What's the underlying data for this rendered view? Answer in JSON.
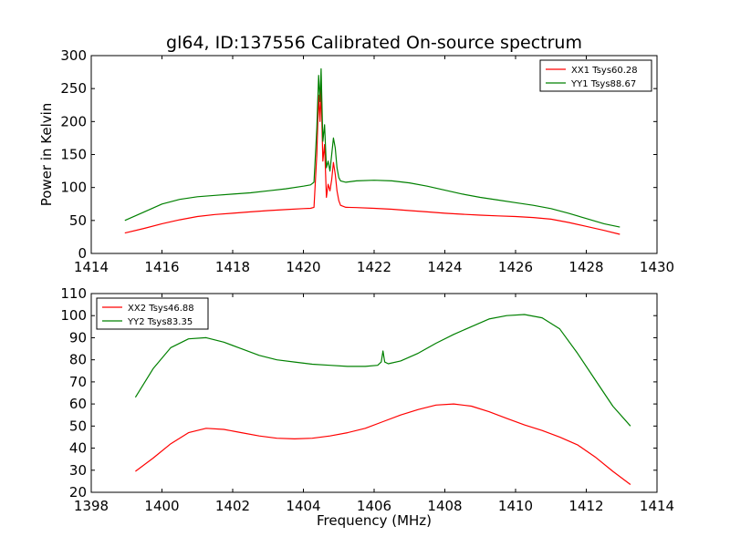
{
  "chart_data": [
    {
      "type": "line",
      "title": "gl64, ID:137556 Calibrated On-source spectrum",
      "xlabel": "",
      "ylabel": "Power in Kelvin",
      "xlim": [
        1414,
        1430
      ],
      "ylim": [
        0,
        300
      ],
      "xticks": [
        "1414",
        "1416",
        "1418",
        "1420",
        "1422",
        "1424",
        "1426",
        "1428",
        "1430"
      ],
      "yticks": [
        "0",
        "50",
        "100",
        "150",
        "200",
        "250",
        "300"
      ],
      "grid": false,
      "legend_position": "top-right",
      "series": [
        {
          "name": "XX1 Tsys60.28",
          "color": "#ff0000",
          "x": [
            1414.95,
            1415.5,
            1416,
            1416.5,
            1417,
            1417.5,
            1418,
            1418.5,
            1419,
            1419.5,
            1420,
            1420.2,
            1420.3,
            1420.38,
            1420.43,
            1420.47,
            1420.5,
            1420.55,
            1420.6,
            1420.65,
            1420.7,
            1420.75,
            1420.8,
            1420.85,
            1420.9,
            1420.95,
            1421.0,
            1421.05,
            1421.2,
            1421.5,
            1422,
            1422.5,
            1423,
            1423.5,
            1424,
            1424.5,
            1425,
            1425.5,
            1426,
            1426.5,
            1427,
            1427.5,
            1428,
            1428.5,
            1428.95
          ],
          "y": [
            31,
            38,
            45,
            51,
            56,
            59,
            61,
            63,
            65,
            66.5,
            68,
            68.5,
            70,
            150,
            240,
            200,
            250,
            140,
            165,
            85,
            105,
            95,
            112,
            138,
            120,
            95,
            80,
            73,
            70,
            69.5,
            68.5,
            67,
            65,
            63,
            61,
            59.5,
            58,
            57,
            56,
            54.5,
            52,
            47,
            41,
            35,
            29
          ]
        },
        {
          "name": "YY1 Tsys88.67",
          "color": "#008000",
          "x": [
            1414.95,
            1415.5,
            1416,
            1416.5,
            1417,
            1417.5,
            1418,
            1418.5,
            1419,
            1419.5,
            1420,
            1420.2,
            1420.3,
            1420.38,
            1420.43,
            1420.47,
            1420.5,
            1420.55,
            1420.6,
            1420.65,
            1420.7,
            1420.75,
            1420.8,
            1420.85,
            1420.9,
            1420.95,
            1421.0,
            1421.05,
            1421.2,
            1421.5,
            1422,
            1422.5,
            1423,
            1423.5,
            1424,
            1424.5,
            1425,
            1425.5,
            1426,
            1426.5,
            1427,
            1427.5,
            1428,
            1428.5,
            1428.95
          ],
          "y": [
            50,
            63,
            75,
            82,
            86,
            88,
            90,
            92,
            95,
            98,
            102,
            104,
            108,
            190,
            270,
            230,
            280,
            170,
            195,
            130,
            140,
            125,
            150,
            175,
            160,
            130,
            115,
            110,
            108,
            110,
            111,
            110,
            107,
            102,
            96,
            90,
            85,
            81,
            77,
            73,
            68,
            61,
            53,
            45,
            40
          ]
        }
      ]
    },
    {
      "type": "line",
      "title": "",
      "xlabel": "Frequency (MHz)",
      "ylabel": "",
      "xlim": [
        1398,
        1414
      ],
      "ylim": [
        20,
        110
      ],
      "xticks": [
        "1398",
        "1400",
        "1402",
        "1404",
        "1406",
        "1408",
        "1410",
        "1412",
        "1414"
      ],
      "yticks": [
        "20",
        "30",
        "40",
        "50",
        "60",
        "70",
        "80",
        "90",
        "100",
        "110"
      ],
      "grid": false,
      "legend_position": "top-left",
      "series": [
        {
          "name": "XX2 Tsys46.88",
          "color": "#ff0000",
          "x": [
            1399.25,
            1399.75,
            1400.25,
            1400.75,
            1401.25,
            1401.75,
            1402.25,
            1402.75,
            1403.25,
            1403.75,
            1404.25,
            1404.75,
            1405.25,
            1405.75,
            1406.25,
            1406.75,
            1407.25,
            1407.75,
            1408.25,
            1408.75,
            1409.25,
            1409.75,
            1410.25,
            1410.75,
            1411.25,
            1411.75,
            1412.25,
            1412.75,
            1413.25
          ],
          "y": [
            29.5,
            35.5,
            42,
            47,
            49,
            48.5,
            47,
            45.5,
            44.5,
            44.2,
            44.5,
            45.5,
            47,
            49,
            52,
            55,
            57.5,
            59.5,
            60,
            59,
            56.5,
            53.5,
            50.5,
            48,
            45,
            41.5,
            36,
            29.5,
            23.5
          ]
        },
        {
          "name": "YY2 Tsys83.35",
          "color": "#008000",
          "x": [
            1399.25,
            1399.75,
            1400.25,
            1400.75,
            1401.25,
            1401.75,
            1402.25,
            1402.75,
            1403.25,
            1403.75,
            1404.25,
            1404.75,
            1405.25,
            1405.75,
            1406.1,
            1406.2,
            1406.25,
            1406.3,
            1406.4,
            1406.75,
            1407.25,
            1407.75,
            1408.25,
            1408.75,
            1409.25,
            1409.75,
            1410.25,
            1410.75,
            1411.25,
            1411.75,
            1412.25,
            1412.75,
            1413.25
          ],
          "y": [
            63,
            76,
            85.5,
            89.5,
            90,
            88,
            85,
            82,
            80,
            79,
            78,
            77.5,
            77,
            77,
            77.5,
            79,
            84,
            79,
            78.2,
            79.5,
            83,
            87.5,
            91.5,
            95,
            98.5,
            100,
            100.5,
            99,
            94,
            83,
            71,
            59,
            50
          ]
        }
      ]
    }
  ]
}
